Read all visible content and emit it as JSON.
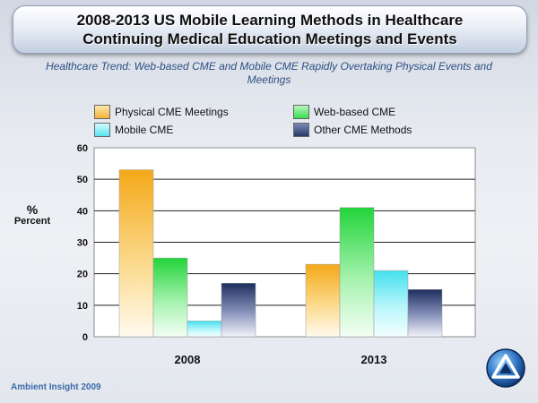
{
  "header": {
    "title_line1": "2008-2013 US Mobile Learning Methods in Healthcare",
    "title_line2": "Continuing Medical Education Meetings and Events"
  },
  "subtitle": "Healthcare Trend: Web-based CME and Mobile CME Rapidly Overtaking Physical Events and Meetings",
  "footer": "Ambient Insight 2009",
  "colors": {
    "series": [
      "#f6b13a",
      "#3cdc50",
      "#56e4f0",
      "#26386a"
    ],
    "accent": "#2d4f82"
  },
  "chart_data": {
    "type": "bar",
    "categories": [
      "2008",
      "2013"
    ],
    "series": [
      {
        "name": "Physical CME Meetings",
        "values": [
          53,
          23
        ]
      },
      {
        "name": "Web-based CME",
        "values": [
          25,
          41
        ]
      },
      {
        "name": "Mobile CME",
        "values": [
          5,
          21
        ]
      },
      {
        "name": "Other CME Methods",
        "values": [
          17,
          15
        ]
      }
    ],
    "ylabel_symbol": "%",
    "ylabel": "Percent",
    "ylim": [
      0,
      60
    ],
    "yticks": [
      0,
      10,
      20,
      30,
      40,
      50,
      60
    ],
    "grid": true,
    "legend_position": "top"
  }
}
